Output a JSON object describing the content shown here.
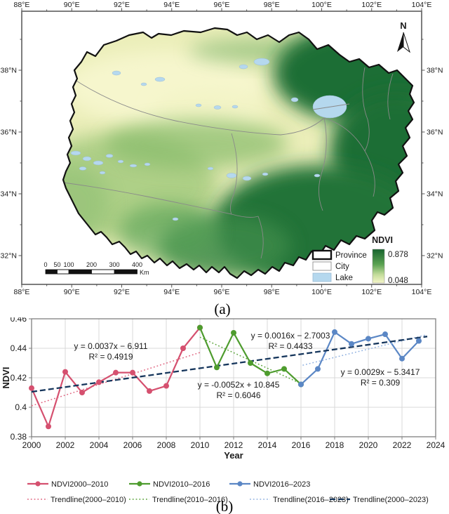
{
  "figure": {
    "caption_a": "(a)",
    "caption_b": "(b)"
  },
  "map": {
    "axis_top": [
      "88°E",
      "90°E",
      "92°E",
      "94°E",
      "96°E",
      "98°E",
      "100°E",
      "102°E",
      "104°E"
    ],
    "axis_bottom": [
      "88°E",
      "90°E",
      "92°E",
      "94°E",
      "96°E",
      "98°E",
      "100°E",
      "102°E",
      "104°E"
    ],
    "axis_left": [
      "38°N",
      "36°N",
      "34°N",
      "32°N"
    ],
    "axis_right": [
      "38°N",
      "36°N",
      "34°N",
      "32°N"
    ],
    "north_arrow_label": "N",
    "legend": {
      "province_label": "Province",
      "city_label": "City",
      "lake_label": "Lake",
      "ndvi_title": "NDVI",
      "ndvi_max": "0.878",
      "ndvi_min": "0.048"
    },
    "scalebar": {
      "labels": [
        "0",
        "50",
        "100",
        "200",
        "300",
        "400"
      ],
      "unit": "Km"
    },
    "colors": {
      "ndvi_high": "#17642e",
      "ndvi_low": "#f5f6c8",
      "lake": "#b5d8ee",
      "province_outline": "#111111",
      "city_boundary": "#8a8a8a"
    }
  },
  "chart_data": {
    "type": "line",
    "title": "",
    "xlabel": "Year",
    "ylabel": "NDVI",
    "xlim": [
      2000,
      2024
    ],
    "ylim": [
      0.38,
      0.46
    ],
    "grid": true,
    "legend_position": "bottom",
    "x_ticks": [
      2000,
      2002,
      2004,
      2006,
      2008,
      2010,
      2012,
      2014,
      2016,
      2018,
      2020,
      2022,
      2024
    ],
    "y_tick_values": [
      0.38,
      0.4,
      0.42,
      0.44,
      0.46
    ],
    "y_tick_labels": [
      "0.38",
      "0.4",
      "0.42",
      "0.44",
      "0.46"
    ],
    "series": [
      {
        "name": "NDVI2000–2010",
        "color": "#d5506f",
        "x": [
          2000,
          2001,
          2002,
          2003,
          2004,
          2005,
          2006,
          2007,
          2008,
          2009,
          2010
        ],
        "values": [
          0.413,
          0.387,
          0.424,
          0.41,
          0.417,
          0.4235,
          0.4235,
          0.411,
          0.4145,
          0.44,
          0.454
        ]
      },
      {
        "name": "NDVI2010–2016",
        "color": "#4e9c2e",
        "x": [
          2010,
          2011,
          2012,
          2013,
          2014,
          2015,
          2016
        ],
        "values": [
          0.454,
          0.427,
          0.4505,
          0.43,
          0.423,
          0.426,
          0.4155
        ]
      },
      {
        "name": "NDVI2016–2023",
        "color": "#5b87c5",
        "x": [
          2016,
          2017,
          2018,
          2019,
          2020,
          2021,
          2022,
          2023
        ],
        "values": [
          0.4155,
          0.426,
          0.451,
          0.443,
          0.4465,
          0.4495,
          0.433,
          0.445
        ]
      }
    ],
    "trendlines": [
      {
        "name": "Trendline(2000–2010)",
        "color": "#e0637f",
        "style": "dotted",
        "x1": 2000,
        "y1": 0.401,
        "x2": 2010.1,
        "y2": 0.4375,
        "equation": "y = 0.0037x − 6.911",
        "r2": "R² = 0.4919"
      },
      {
        "name": "Trendline(2010–2016)",
        "color": "#5aa43a",
        "style": "dotted",
        "x1": 2010,
        "y1": 0.4475,
        "x2": 2016.1,
        "y2": 0.4155,
        "equation": "y = -0.0052x + 10.845",
        "r2": "R² = 0.6046"
      },
      {
        "name": "Trendline(2016–2023)",
        "color": "#8fb0e0",
        "style": "dotted",
        "x1": 2016.1,
        "y1": 0.4285,
        "x2": 2023.4,
        "y2": 0.449,
        "equation": "y = 0.0029x − 5.3417",
        "r2": "R² = 0.309"
      },
      {
        "name": "Trendline(2000–2023)",
        "color": "#16365c",
        "style": "dashed",
        "x1": 2000,
        "y1": 0.4105,
        "x2": 2023.5,
        "y2": 0.448,
        "equation": "y = 0.0016x − 2.7003",
        "r2": "R² = 0.4433"
      }
    ]
  }
}
